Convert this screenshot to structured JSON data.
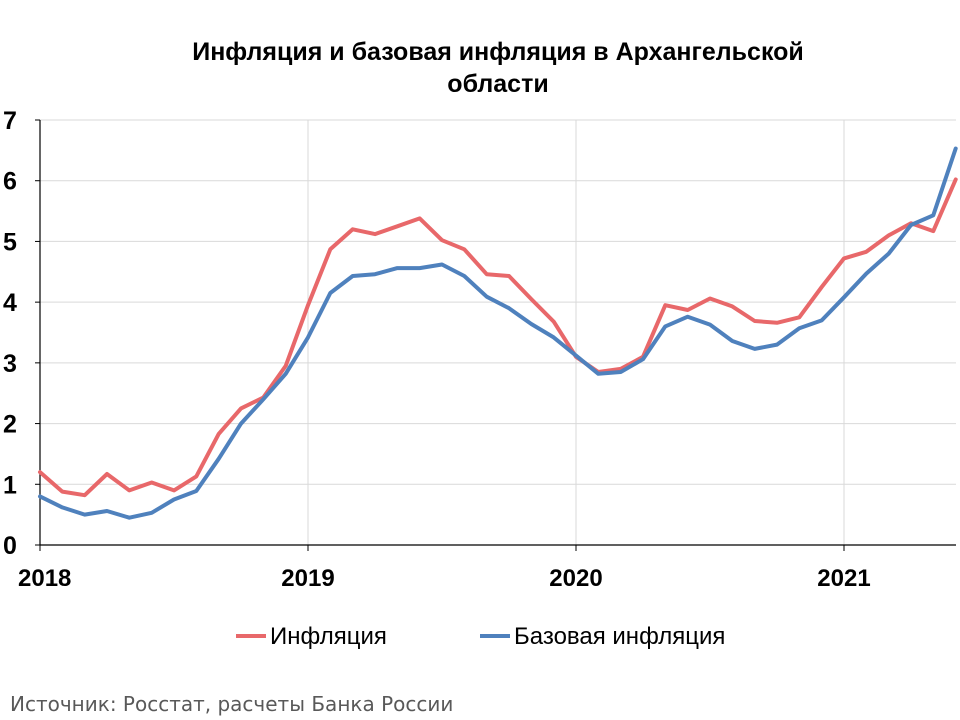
{
  "chart_data": {
    "type": "line",
    "title_lines": [
      "Инфляция и базовая инфляция в Архангельской",
      "области"
    ],
    "ylim": [
      0,
      7
    ],
    "yticks": [
      0,
      1,
      2,
      3,
      4,
      5,
      6,
      7
    ],
    "xticks": [
      {
        "label": "2018",
        "index": 0
      },
      {
        "label": "2019",
        "index": 12
      },
      {
        "label": "2020",
        "index": 24
      },
      {
        "label": "2021",
        "index": 36
      }
    ],
    "x_start": "2018-01",
    "x_count": 42,
    "grid": true,
    "legend": "bottom",
    "series": [
      {
        "name": "Инфляция",
        "color": "#E8686A",
        "values": [
          1.2,
          0.88,
          0.82,
          1.17,
          0.9,
          1.03,
          0.9,
          1.13,
          1.83,
          2.25,
          2.43,
          2.95,
          3.95,
          4.87,
          5.2,
          5.12,
          5.25,
          5.38,
          5.02,
          4.87,
          4.46,
          4.43,
          4.05,
          3.68,
          3.1,
          2.85,
          2.9,
          3.1,
          3.95,
          3.87,
          4.06,
          3.93,
          3.69,
          3.66,
          3.75,
          4.25,
          4.72,
          4.83,
          5.1,
          5.3,
          5.17,
          6.02
        ]
      },
      {
        "name": "Базовая инфляция",
        "color": "#4F81BD",
        "values": [
          0.8,
          0.62,
          0.5,
          0.56,
          0.45,
          0.53,
          0.75,
          0.89,
          1.42,
          2.0,
          2.4,
          2.82,
          3.42,
          4.15,
          4.43,
          4.46,
          4.56,
          4.56,
          4.62,
          4.43,
          4.09,
          3.9,
          3.64,
          3.42,
          3.12,
          2.82,
          2.85,
          3.06,
          3.6,
          3.76,
          3.63,
          3.36,
          3.23,
          3.3,
          3.57,
          3.7,
          4.08,
          4.47,
          4.8,
          5.27,
          5.43,
          6.53
        ]
      }
    ]
  },
  "source": "Источник: Росстат, расчеты Банка России"
}
